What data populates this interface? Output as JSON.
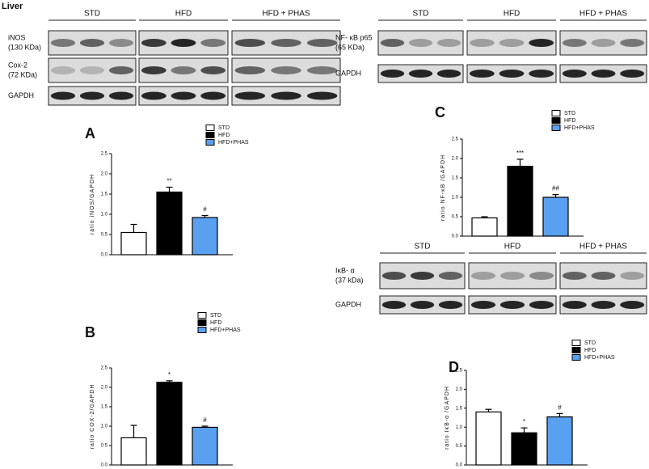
{
  "figure_label": "Liver",
  "blots": [
    {
      "groups": [
        "STD",
        "HFD",
        "HFD + PHAS"
      ],
      "rows": [
        [
          "iNOS",
          "(130 KDa)"
        ],
        [
          "Cox-2",
          "(72 KDa)"
        ],
        [
          "GAPDH"
        ]
      ]
    },
    {
      "groups": [
        "STD",
        "HFD",
        "HFD + PHAS"
      ],
      "rows": [
        [
          "NF- κB p65",
          "(65 KDa)"
        ],
        [
          "GAPDH"
        ]
      ]
    },
    {
      "groups": [
        "STD",
        "HFD",
        "HFD + PHAS"
      ],
      "rows": [
        [
          "IκB- α",
          "(37 kDa)"
        ],
        [
          "GAPDH"
        ]
      ]
    }
  ],
  "chart_data": [
    {
      "type": "bar",
      "panel": "A",
      "ylabel": "ratio iNOS/GAPDH",
      "ylim": [
        0,
        2.5
      ],
      "yticks": [
        {
          "value": 0,
          "label": "0.0"
        },
        {
          "value": 0.5,
          "label": "0.5"
        },
        {
          "value": 1,
          "label": "1.0"
        },
        {
          "value": 1.5,
          "label": "1.5"
        },
        {
          "value": 2,
          "label": "2.0"
        },
        {
          "value": 2.5,
          "label": "2.5"
        }
      ],
      "series": [
        {
          "name": "STD",
          "color": "#ffffff",
          "values": [
            0.55
          ],
          "errors": [
            0.2
          ]
        },
        {
          "name": "HFD",
          "color": "#000000",
          "values": [
            1.55
          ],
          "errors": [
            0.12
          ],
          "annotation": "**"
        },
        {
          "name": "HFD+PHAS",
          "color": "#5aa0f0",
          "values": [
            0.92
          ],
          "errors": [
            0.05
          ],
          "annotation": "#"
        }
      ]
    },
    {
      "type": "bar",
      "panel": "B",
      "ylabel": "ratio COX-2/GAPDH",
      "ylim": [
        0,
        2.5
      ],
      "yticks": [
        {
          "value": 0,
          "label": "0.0"
        },
        {
          "value": 0.5,
          "label": "0.5"
        },
        {
          "value": 1,
          "label": "1.0"
        },
        {
          "value": 1.5,
          "label": "1.5"
        },
        {
          "value": 2,
          "label": "2.0"
        },
        {
          "value": 2.5,
          "label": "2.5"
        }
      ],
      "series": [
        {
          "name": "STD",
          "color": "#ffffff",
          "values": [
            0.7
          ],
          "errors": [
            0.32
          ]
        },
        {
          "name": "HFD",
          "color": "#000000",
          "values": [
            2.13
          ],
          "errors": [
            0.04
          ],
          "annotation": "*"
        },
        {
          "name": "HFD+PHAS",
          "color": "#5aa0f0",
          "values": [
            0.97
          ],
          "errors": [
            0.03
          ],
          "annotation": "#"
        }
      ]
    },
    {
      "type": "bar",
      "panel": "C",
      "ylabel": "ratio NF-κB /GAPDH",
      "ylim": [
        0,
        2.5
      ],
      "yticks": [
        {
          "value": 0,
          "label": "0.0"
        },
        {
          "value": 0.5,
          "label": "0.5"
        },
        {
          "value": 1,
          "label": "1.0"
        },
        {
          "value": 1.5,
          "label": "1.5"
        },
        {
          "value": 2,
          "label": "2.0"
        },
        {
          "value": 2.5,
          "label": "2.5"
        }
      ],
      "series": [
        {
          "name": "STD",
          "color": "#ffffff",
          "values": [
            0.47
          ],
          "errors": [
            0.03
          ]
        },
        {
          "name": "HFD",
          "color": "#000000",
          "values": [
            1.8
          ],
          "errors": [
            0.18
          ],
          "annotation": "***"
        },
        {
          "name": "HFD+PHAS",
          "color": "#5aa0f0",
          "values": [
            1.0
          ],
          "errors": [
            0.07
          ],
          "annotation": "##"
        }
      ]
    },
    {
      "type": "bar",
      "panel": "D",
      "ylabel": "ratio IκB-α /GAPDH",
      "ylim": [
        0,
        2.5
      ],
      "yticks": [
        {
          "value": 0,
          "label": "0.0"
        },
        {
          "value": 0.5,
          "label": "0.5"
        },
        {
          "value": 1,
          "label": "1.0"
        },
        {
          "value": 1.5,
          "label": "1.5"
        },
        {
          "value": 2,
          "label": "2.0"
        },
        {
          "value": 2.5,
          "label": "2.5"
        }
      ],
      "series": [
        {
          "name": "STD",
          "color": "#ffffff",
          "values": [
            1.4
          ],
          "errors": [
            0.07
          ]
        },
        {
          "name": "HFD",
          "color": "#000000",
          "values": [
            0.85
          ],
          "errors": [
            0.13
          ],
          "annotation": "*"
        },
        {
          "name": "HFD+PHAS",
          "color": "#5aa0f0",
          "values": [
            1.27
          ],
          "errors": [
            0.09
          ],
          "annotation": "#"
        }
      ]
    }
  ]
}
